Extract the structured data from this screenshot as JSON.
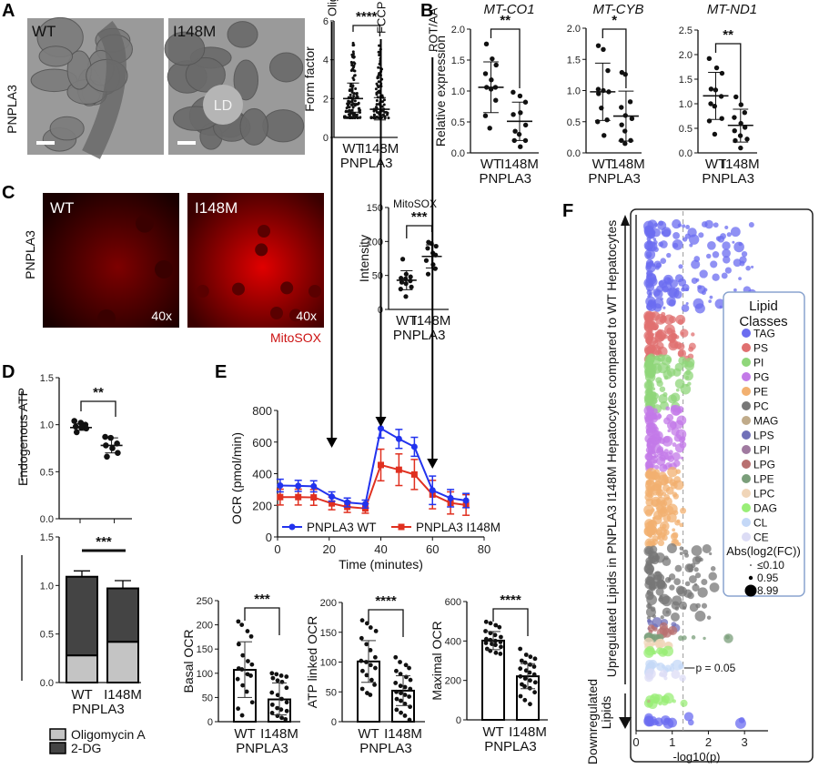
{
  "figure": {
    "panels": {
      "A": {
        "letter": "A",
        "row_label": "PNPLA3",
        "images": [
          {
            "label": "WT",
            "type": "electron-micrograph"
          },
          {
            "label": "I148M",
            "type": "electron-micrograph",
            "annotation": "LD"
          }
        ]
      },
      "B": {
        "letter": "B"
      },
      "C": {
        "letter": "C",
        "row_label": "PNPLA3",
        "images": [
          {
            "label": "WT",
            "magnification": "40x"
          },
          {
            "label": "I148M",
            "magnification": "40x"
          }
        ],
        "stain_label": "MitoSOX"
      },
      "D": {
        "letter": "D",
        "legend": [
          {
            "label": "Oligomycin A",
            "color": "#c4c4c4"
          },
          {
            "label": "2-DG",
            "color": "#444444"
          }
        ]
      },
      "E": {
        "letter": "E"
      },
      "F": {
        "letter": "F"
      }
    },
    "common": {
      "group_label": "PNPLA3",
      "groups": [
        "WT",
        "I148M"
      ]
    }
  },
  "chart_data": [
    {
      "id": "A-form-factor",
      "type": "scatter",
      "title": "",
      "xlabel": "PNPLA3",
      "ylabel": "Form factor",
      "categories": [
        "WT",
        "I148M"
      ],
      "ylim": [
        0,
        6
      ],
      "yticks": [
        0,
        2,
        4,
        6
      ],
      "significance": "****",
      "series": [
        {
          "name": "WT",
          "mean": 2.0,
          "sd_upper": 2.8,
          "sd_lower": 1.3,
          "max": 5.1,
          "min": 1.0,
          "n_approx": 120
        },
        {
          "name": "I148M",
          "mean": 1.45,
          "sd_upper": 2.05,
          "sd_lower": 0.9,
          "max": 4.8,
          "min": 1.0,
          "n_approx": 100
        }
      ]
    },
    {
      "id": "B-MT-CO1",
      "type": "scatter",
      "title": "MT-CO1",
      "xlabel": "PNPLA3",
      "ylabel": "Relative expression",
      "categories": [
        "WT",
        "I148M"
      ],
      "ylim": [
        0,
        2.0
      ],
      "yticks": [
        0.0,
        0.5,
        1.0,
        1.5,
        2.0
      ],
      "significance": "**",
      "series": [
        {
          "name": "WT",
          "mean": 1.06,
          "sd_upper": 1.47,
          "sd_lower": 0.65,
          "points": [
            1.76,
            1.52,
            1.42,
            1.28,
            1.18,
            1.06,
            1.06,
            1.03,
            0.85,
            0.6,
            0.4
          ]
        },
        {
          "name": "I148M",
          "mean": 0.51,
          "sd_upper": 0.82,
          "sd_lower": 0.2,
          "points": [
            0.98,
            0.92,
            0.82,
            0.62,
            0.65,
            0.45,
            0.35,
            0.3,
            0.2,
            0.2,
            0.1
          ]
        }
      ]
    },
    {
      "id": "B-MT-CYB",
      "type": "scatter",
      "title": "MT-CYB",
      "xlabel": "PNPLA3",
      "ylabel": "",
      "categories": [
        "WT",
        "I148M"
      ],
      "ylim": [
        0,
        2.0
      ],
      "yticks": [
        0.0,
        0.5,
        1.0,
        1.5,
        2.0
      ],
      "significance": "*",
      "series": [
        {
          "name": "WT",
          "mean": 0.98,
          "sd_upper": 1.44,
          "sd_lower": 0.52,
          "points": [
            1.72,
            1.66,
            1.32,
            1.02,
            1.0,
            0.98,
            0.95,
            0.72,
            0.53,
            0.5,
            0.28
          ]
        },
        {
          "name": "I148M",
          "mean": 0.59,
          "sd_upper": 0.99,
          "sd_lower": 0.19,
          "points": [
            1.29,
            1.26,
            0.82,
            0.73,
            0.6,
            0.55,
            0.45,
            0.35,
            0.2,
            0.2,
            0.15
          ]
        }
      ]
    },
    {
      "id": "B-MT-ND1",
      "type": "scatter",
      "title": "MT-ND1",
      "xlabel": "PNPLA3",
      "ylabel": "",
      "categories": [
        "WT",
        "I148M"
      ],
      "ylim": [
        0,
        2.5
      ],
      "yticks": [
        0.0,
        0.5,
        1.0,
        1.5,
        2.0,
        2.5
      ],
      "significance": "**",
      "series": [
        {
          "name": "WT",
          "mean": 1.16,
          "sd_upper": 1.64,
          "sd_lower": 0.68,
          "points": [
            1.92,
            1.73,
            1.62,
            1.3,
            1.28,
            1.15,
            1.0,
            0.95,
            0.7,
            0.65,
            0.38
          ]
        },
        {
          "name": "I148M",
          "mean": 0.56,
          "sd_upper": 0.89,
          "sd_lower": 0.22,
          "points": [
            1.14,
            0.98,
            0.82,
            0.72,
            0.6,
            0.52,
            0.45,
            0.35,
            0.28,
            0.25,
            0.1
          ]
        }
      ]
    },
    {
      "id": "C-MitoSOX",
      "type": "scatter",
      "title": "MitoSOX",
      "xlabel": "PNPLA3",
      "ylabel": "Intensity",
      "categories": [
        "WT",
        "I148M"
      ],
      "ylim": [
        0,
        150
      ],
      "yticks": [
        0,
        50,
        100,
        150
      ],
      "significance": "***",
      "series": [
        {
          "name": "WT",
          "mean": 43,
          "sd_upper": 57,
          "sd_lower": 29,
          "points": [
            74,
            52,
            48,
            46,
            45,
            42,
            40,
            38,
            33,
            30,
            19
          ]
        },
        {
          "name": "I148M",
          "mean": 78,
          "sd_upper": 95,
          "sd_lower": 61,
          "points": [
            99,
            97,
            93,
            90,
            83,
            80,
            72,
            66,
            60,
            52
          ]
        }
      ]
    },
    {
      "id": "D-top",
      "type": "scatter",
      "title": "",
      "xlabel": "",
      "ylabel": "Endogenous ATP",
      "categories": [
        "WT",
        "I148M"
      ],
      "ylim": [
        0,
        1.5
      ],
      "yticks": [
        0.0,
        0.5,
        1.0,
        1.5
      ],
      "significance": "**",
      "series": [
        {
          "name": "WT",
          "mean": 0.97,
          "sd_upper": 1.01,
          "sd_lower": 0.94,
          "points": [
            1.04,
            1.02,
            1.0,
            0.98,
            0.97,
            0.96,
            0.92
          ]
        },
        {
          "name": "I148M",
          "mean": 0.78,
          "sd_upper": 0.86,
          "sd_lower": 0.7,
          "points": [
            0.87,
            0.86,
            0.8,
            0.78,
            0.75,
            0.7,
            0.66
          ]
        }
      ]
    },
    {
      "id": "D-bottom",
      "type": "bar",
      "stacked": true,
      "title": "",
      "xlabel": "PNPLA3",
      "ylabel": "Endogenous ATP",
      "categories": [
        "WT",
        "I148M"
      ],
      "ylim": [
        0,
        1.5
      ],
      "yticks": [
        0.0,
        0.5,
        1.0,
        1.5
      ],
      "significance": "***",
      "series": [
        {
          "name": "Oligomycin A",
          "values": [
            0.28,
            0.42
          ],
          "errors": [
            0.06,
            0.05
          ],
          "color": "#c4c4c4"
        },
        {
          "name": "2-DG",
          "values": [
            0.81,
            0.55
          ],
          "errors": [
            0.06,
            0.08
          ],
          "color": "#444444"
        }
      ],
      "totals": [
        1.09,
        0.97
      ]
    },
    {
      "id": "E-OCR-timecourse",
      "type": "line",
      "title": "",
      "xlabel": "Time (minutes)",
      "ylabel": "OCR (pmol/min)",
      "xlim": [
        0,
        80
      ],
      "ylim": [
        0,
        800
      ],
      "xticks": [
        0,
        20,
        40,
        60,
        80
      ],
      "yticks": [
        0,
        200,
        400,
        600,
        800
      ],
      "x": [
        1,
        8,
        14,
        21,
        27,
        34,
        40,
        47,
        53,
        60,
        67,
        73
      ],
      "annotations": [
        {
          "label": "Oligomycin A",
          "x": 21
        },
        {
          "label": "FCCP",
          "x": 40
        },
        {
          "label": "ROT/AA",
          "x": 60
        }
      ],
      "legend_position": "bottom-inside",
      "series": [
        {
          "name": "PNPLA3 WT",
          "color": "#2233ee",
          "marker": "circle",
          "values": [
            325,
            323,
            320,
            255,
            218,
            208,
            686,
            620,
            570,
            295,
            245,
            230
          ],
          "errors": [
            40,
            35,
            35,
            30,
            28,
            25,
            60,
            60,
            60,
            90,
            55,
            45
          ]
        },
        {
          "name": "PNPLA3 I148M",
          "color": "#e03020",
          "marker": "square",
          "values": [
            252,
            252,
            250,
            212,
            190,
            180,
            455,
            425,
            395,
            268,
            215,
            202
          ],
          "errors": [
            50,
            50,
            50,
            40,
            35,
            30,
            100,
            100,
            95,
            90,
            70,
            65
          ]
        }
      ]
    },
    {
      "id": "E-basal-OCR",
      "type": "bar",
      "title": "",
      "xlabel": "PNPLA3",
      "ylabel": "Basal OCR",
      "categories": [
        "WT",
        "I148M"
      ],
      "ylim": [
        0,
        250
      ],
      "yticks": [
        0,
        50,
        100,
        150,
        200,
        250
      ],
      "significance": "***",
      "values": [
        107,
        46
      ],
      "errors_upper": [
        165,
        80
      ],
      "errors_lower": [
        50,
        14
      ],
      "points": [
        [
          207,
          200,
          187,
          176,
          160,
          137,
          125,
          118,
          110,
          108,
          98,
          95,
          88,
          75,
          62,
          40,
          27,
          13
        ],
        [
          100,
          98,
          95,
          93,
          90,
          85,
          82,
          70,
          60,
          55,
          47,
          40,
          35,
          28,
          25,
          22,
          18,
          12,
          8,
          5
        ]
      ]
    },
    {
      "id": "E-ATP-linked-OCR",
      "type": "bar",
      "title": "",
      "xlabel": "PNPLA3",
      "ylabel": "ATP linked OCR",
      "categories": [
        "WT",
        "I148M"
      ],
      "ylim": [
        0,
        200
      ],
      "yticks": [
        0,
        50,
        100,
        150,
        200
      ],
      "significance": "****",
      "values": [
        101,
        52
      ],
      "errors_upper": [
        136,
        77
      ],
      "errors_lower": [
        66,
        27
      ],
      "points": [
        [
          170,
          165,
          158,
          152,
          140,
          130,
          120,
          108,
          102,
          100,
          95,
          90,
          85,
          78,
          70,
          62,
          55,
          48,
          45
        ],
        [
          108,
          100,
          95,
          90,
          85,
          80,
          75,
          70,
          65,
          60,
          58,
          55,
          50,
          48,
          45,
          42,
          38,
          35,
          30,
          25,
          20,
          15,
          10,
          3
        ]
      ]
    },
    {
      "id": "E-maximal-OCR",
      "type": "bar",
      "title": "",
      "xlabel": "PNPLA3",
      "ylabel": "Maximal OCR",
      "categories": [
        "WT",
        "I148M"
      ],
      "ylim": [
        0,
        600
      ],
      "yticks": [
        0,
        200,
        400,
        600
      ],
      "significance": "****",
      "values": [
        402,
        221
      ],
      "errors_upper": [
        448,
        285
      ],
      "errors_lower": [
        356,
        158
      ],
      "points": [
        [
          497,
          490,
          480,
          470,
          450,
          440,
          430,
          420,
          410,
          405,
          400,
          395,
          390,
          385,
          380,
          370,
          360,
          350,
          340,
          335
        ],
        [
          360,
          330,
          320,
          310,
          300,
          290,
          280,
          270,
          260,
          250,
          240,
          230,
          220,
          210,
          200,
          190,
          180,
          170,
          160,
          140,
          120,
          100,
          80
        ]
      ]
    },
    {
      "id": "F-lipid-classes",
      "type": "scatter",
      "title": "",
      "xlabel": "-log10(p)",
      "ylabel_up": "Upregulated Lipids in PNPLA3 I148M Hepatocytes compared to WT Hepatocytes",
      "ylabel_down": "Downregulated Lipids",
      "xlim": [
        0,
        3.6
      ],
      "xticks": [
        0,
        1,
        2,
        3
      ],
      "threshold": {
        "x": 1.3,
        "label": "p = 0.05"
      },
      "legend_title": "Lipid Classes",
      "legend_position": "right-inside",
      "classes": [
        {
          "name": "TAG",
          "color": "#6b6cf0"
        },
        {
          "name": "PS",
          "color": "#e07070"
        },
        {
          "name": "PI",
          "color": "#8fd67a"
        },
        {
          "name": "PG",
          "color": "#c37ae8"
        },
        {
          "name": "PE",
          "color": "#f2b070"
        },
        {
          "name": "PC",
          "color": "#777777"
        },
        {
          "name": "MAG",
          "color": "#c0ab8a"
        },
        {
          "name": "LPS",
          "color": "#7070b8"
        },
        {
          "name": "LPI",
          "color": "#a07aa0"
        },
        {
          "name": "LPG",
          "color": "#b87070"
        },
        {
          "name": "LPE",
          "color": "#7a9e7a"
        },
        {
          "name": "LPC",
          "color": "#f0d5b8"
        },
        {
          "name": "DAG",
          "color": "#99ee77"
        },
        {
          "name": "CL",
          "color": "#c4d8f7"
        },
        {
          "name": "CE",
          "color": "#dcdcf5"
        }
      ],
      "size_legend_title": "Abs(log2(FC))",
      "size_legend": [
        {
          "label": "≤0.10",
          "r": 1
        },
        {
          "label": "0.95",
          "r": 3
        },
        {
          "label": "8.99",
          "r": 9
        }
      ]
    }
  ]
}
